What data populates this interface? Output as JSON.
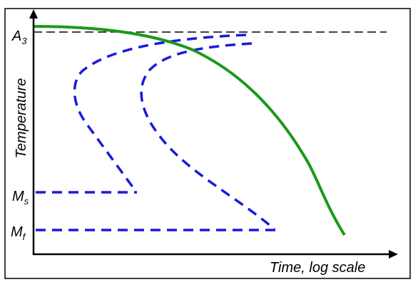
{
  "labels": {
    "a3_main": "A",
    "a3_sub": "3",
    "ms_main": "M",
    "ms_sub": "s",
    "mf_main": "M",
    "mf_sub": "f",
    "y_axis": "Temperature",
    "x_axis": "Time, log scale"
  },
  "colors": {
    "cooling_curve": "#1a9a1a",
    "transformation_curves": "#1a1adc",
    "axes": "#000000",
    "reference_line": "#000000",
    "frame": "#000000"
  },
  "curves": [
    {
      "name": "cooling-curve",
      "style": "solid",
      "color_key": "cooling_curve"
    },
    {
      "name": "transformation-start-curve",
      "style": "dashed",
      "color_key": "transformation_curves"
    },
    {
      "name": "transformation-finish-curve",
      "style": "dashed",
      "color_key": "transformation_curves"
    },
    {
      "name": "ms-line",
      "style": "dashed",
      "color_key": "transformation_curves"
    },
    {
      "name": "mf-line",
      "style": "dashed",
      "color_key": "transformation_curves"
    },
    {
      "name": "a3-line",
      "style": "dashed",
      "color_key": "reference_line"
    }
  ]
}
